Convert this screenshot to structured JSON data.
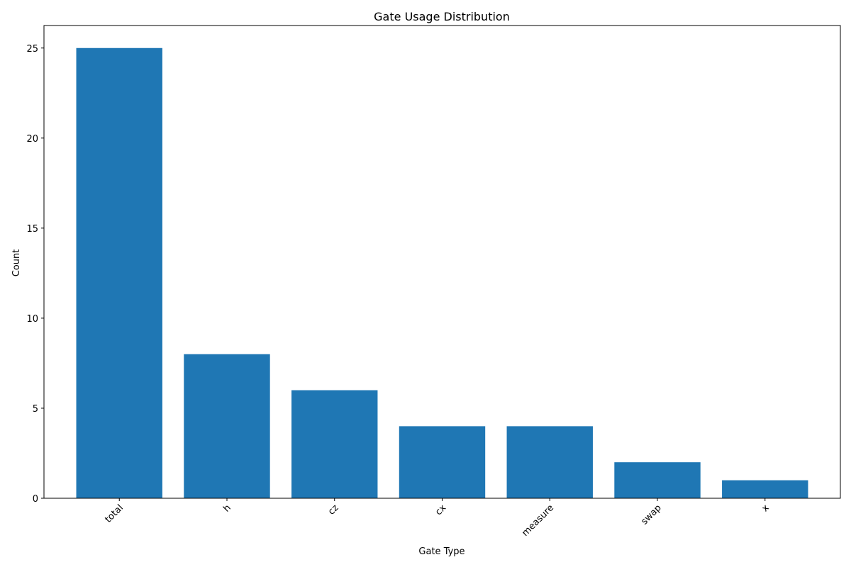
{
  "chart_data": {
    "type": "bar",
    "title": "Gate Usage Distribution",
    "xlabel": "Gate Type",
    "ylabel": "Count",
    "categories": [
      "total",
      "h",
      "cz",
      "cx",
      "measure",
      "swap",
      "x"
    ],
    "values": [
      25,
      8,
      6,
      4,
      4,
      2,
      1
    ],
    "ylim": [
      0,
      26.25
    ],
    "yticks": [
      0,
      5,
      10,
      15,
      20,
      25
    ],
    "bar_color": "#1f77b4",
    "grid": false,
    "x_tick_rotation": 45
  }
}
